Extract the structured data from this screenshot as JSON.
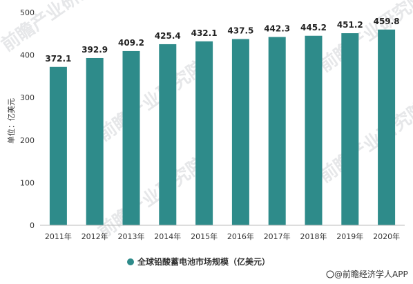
{
  "chart_data": {
    "type": "bar",
    "categories": [
      "2011年",
      "2012年",
      "2013年",
      "2014年",
      "2015年",
      "2016年",
      "2017年",
      "2018年",
      "2019年",
      "2020年"
    ],
    "values": [
      372.1,
      392.9,
      409.2,
      425.4,
      432.1,
      437.5,
      442.3,
      445.2,
      451.2,
      459.8
    ],
    "value_labels": [
      "372.1",
      "392.9",
      "409.2",
      "425.4",
      "432.1",
      "437.5",
      "442.3",
      "445.2",
      "451.2",
      "459.8"
    ],
    "series": [
      {
        "name": "全球铅酸蓄电池市场规模（亿美元）",
        "values": [
          372.1,
          392.9,
          409.2,
          425.4,
          432.1,
          437.5,
          442.3,
          445.2,
          451.2,
          459.8
        ]
      }
    ],
    "ylabel": "单位：亿美元",
    "ylim": [
      0,
      500
    ],
    "yticks": [
      "0",
      "100",
      "200",
      "300",
      "400",
      "500"
    ],
    "grid": false,
    "legend_position": "bottom",
    "bar_color": "#2e8b8a"
  },
  "credit": "@前瞻经济学人APP",
  "watermark": "前瞻产业研究院"
}
